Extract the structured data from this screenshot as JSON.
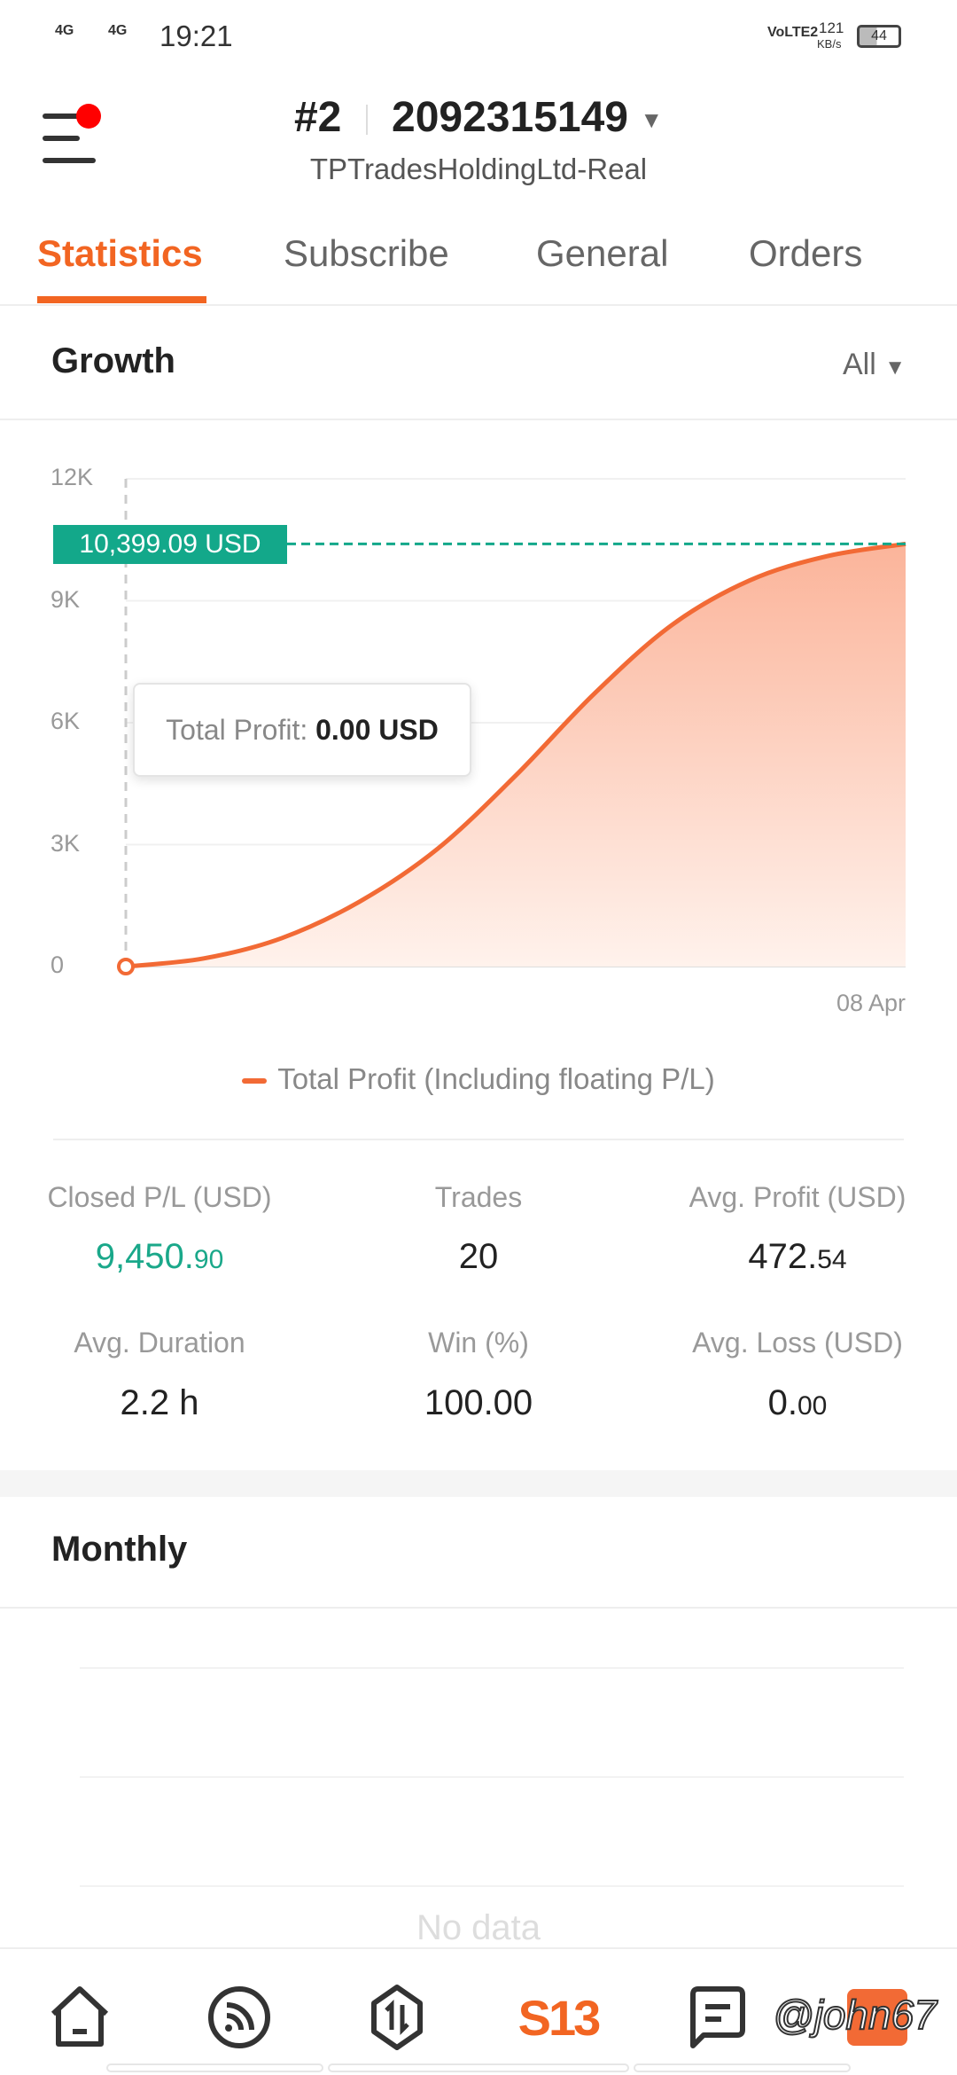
{
  "status_bar": {
    "network1": "4G",
    "network2": "4G",
    "time": "19:21",
    "volte": "VoLTE2",
    "speed": "121",
    "speed_unit": "KB/s",
    "battery": "44"
  },
  "header": {
    "account_num": "#2",
    "account_id": "2092315149",
    "server": "TPTradesHoldingLtd-Real",
    "has_notification": true
  },
  "tabs": [
    {
      "label": "Statistics",
      "active": true
    },
    {
      "label": "Subscribe"
    },
    {
      "label": "General"
    },
    {
      "label": "Orders"
    }
  ],
  "growth": {
    "title": "Growth",
    "filter": "All"
  },
  "chart_data": {
    "type": "area",
    "y_ticks": [
      "12K",
      "9K",
      "6K",
      "3K",
      "0"
    ],
    "ylim": [
      0,
      12000
    ],
    "x_tick": "08 Apr",
    "grid": true,
    "legend": "bottom",
    "series": [
      {
        "name": "Total Profit (Including floating P/L)",
        "color": "#f26a35",
        "values": [
          0,
          200,
          700,
          1600,
          2900,
          4700,
          6700,
          8400,
          9500,
          10100,
          10399.09
        ]
      }
    ],
    "current_value_label": "10,399.09 USD",
    "tooltip": {
      "label": "Total Profit:",
      "value": "0.00 USD"
    }
  },
  "stats": [
    {
      "label": "Closed P/L (USD)",
      "int": "9,450.",
      "dec": "90",
      "color": "#1aa88a"
    },
    {
      "label": "Trades",
      "int": "20",
      "dec": ""
    },
    {
      "label": "Avg. Profit (USD)",
      "int": "472.",
      "dec": "54"
    },
    {
      "label": "Avg. Duration",
      "int": "2.2 h",
      "dec": ""
    },
    {
      "label": "Win (%)",
      "int": "100.00",
      "dec": ""
    },
    {
      "label": "Avg. Loss (USD)",
      "int": "0.",
      "dec": "00"
    }
  ],
  "monthly": {
    "title": "Monthly",
    "empty": "No data"
  },
  "nav": [
    "home-icon",
    "feed-icon",
    "trade-icon",
    "s13-logo",
    "chat-icon",
    "profile-icon"
  ],
  "nav_logo": "S13",
  "watermark": "@john67",
  "colors": {
    "accent": "#f26522",
    "green": "#13a88a"
  }
}
